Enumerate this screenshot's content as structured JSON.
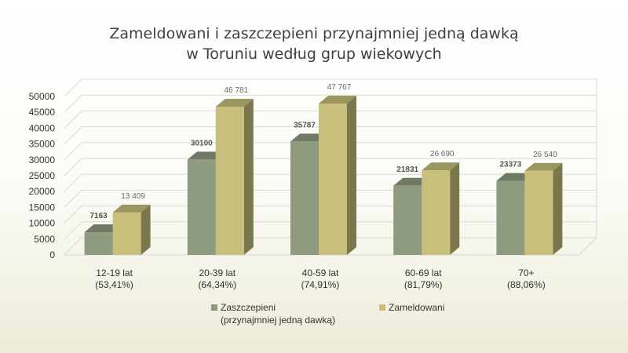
{
  "chart_data": {
    "type": "bar",
    "title_lines": [
      "Zameldowani i zaszczepieni przynajmniej jedną dawką",
      "w Toruniu według grup wiekowych"
    ],
    "categories": [
      [
        "12-19 lat",
        "(53,41%)"
      ],
      [
        "20-39 lat",
        "(64,34%)"
      ],
      [
        "40-59 lat",
        "(74,91%)"
      ],
      [
        "60-69 lat",
        "(81,79%)"
      ],
      [
        "70+",
        "(88,06%)"
      ]
    ],
    "series": [
      {
        "name": "Zaszczepieni (przynajmniej jedną dawką)",
        "name_lines": [
          "Zaszczepieni",
          "(przynajmniej jedną dawką)"
        ],
        "values": [
          7163,
          30100,
          35787,
          21831,
          23373
        ],
        "labels": [
          "7163",
          "30100",
          "35787",
          "21831",
          "23373"
        ],
        "color": "#8f9b7f"
      },
      {
        "name": "Zameldowani",
        "name_lines": [
          "Zameldowani"
        ],
        "values": [
          13409,
          46781,
          47767,
          26690,
          26540
        ],
        "labels": [
          "13 409",
          "46 781",
          "47 767",
          "26 690",
          "26 540"
        ],
        "color": "#c7bf7b"
      }
    ],
    "ylim": [
      0,
      50000
    ],
    "yticks": [
      0,
      5000,
      10000,
      15000,
      20000,
      25000,
      30000,
      35000,
      40000,
      45000,
      50000
    ],
    "grid": true,
    "three_d": true,
    "legend_position": "bottom"
  }
}
